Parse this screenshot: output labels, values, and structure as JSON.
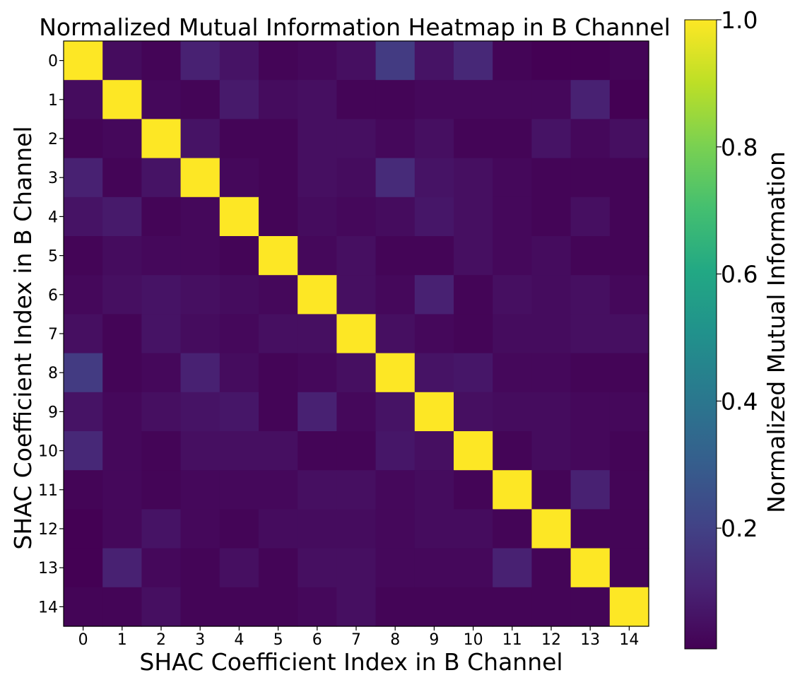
{
  "chart_data": {
    "type": "heatmap",
    "title": "Normalized Mutual Information Heatmap in B Channel",
    "xlabel": "SHAC Coefficient Index in B Channel",
    "ylabel": "SHAC Coefficient Index in B Channel",
    "x_categories": [
      "0",
      "1",
      "2",
      "3",
      "4",
      "5",
      "6",
      "7",
      "8",
      "9",
      "10",
      "11",
      "12",
      "13",
      "14"
    ],
    "y_categories": [
      "0",
      "1",
      "2",
      "3",
      "4",
      "5",
      "6",
      "7",
      "8",
      "9",
      "10",
      "11",
      "12",
      "13",
      "14"
    ],
    "values": [
      [
        1.0,
        0.04,
        0.02,
        0.1,
        0.06,
        0.02,
        0.03,
        0.05,
        0.18,
        0.06,
        0.12,
        0.02,
        0.01,
        0.01,
        0.02
      ],
      [
        0.04,
        1.0,
        0.03,
        0.02,
        0.08,
        0.04,
        0.05,
        0.02,
        0.02,
        0.03,
        0.03,
        0.03,
        0.03,
        0.1,
        0.01
      ],
      [
        0.02,
        0.03,
        1.0,
        0.06,
        0.02,
        0.02,
        0.05,
        0.05,
        0.03,
        0.05,
        0.02,
        0.02,
        0.06,
        0.03,
        0.05
      ],
      [
        0.1,
        0.02,
        0.06,
        1.0,
        0.03,
        0.02,
        0.05,
        0.04,
        0.13,
        0.06,
        0.05,
        0.03,
        0.02,
        0.02,
        0.02
      ],
      [
        0.06,
        0.08,
        0.02,
        0.03,
        1.0,
        0.02,
        0.04,
        0.03,
        0.04,
        0.07,
        0.05,
        0.03,
        0.02,
        0.05,
        0.02
      ],
      [
        0.02,
        0.04,
        0.03,
        0.03,
        0.02,
        1.0,
        0.03,
        0.05,
        0.02,
        0.02,
        0.05,
        0.03,
        0.04,
        0.02,
        0.02
      ],
      [
        0.03,
        0.05,
        0.06,
        0.05,
        0.04,
        0.03,
        1.0,
        0.05,
        0.03,
        0.1,
        0.02,
        0.05,
        0.04,
        0.05,
        0.03
      ],
      [
        0.05,
        0.02,
        0.06,
        0.04,
        0.03,
        0.05,
        0.05,
        1.0,
        0.05,
        0.03,
        0.02,
        0.04,
        0.04,
        0.05,
        0.05
      ],
      [
        0.18,
        0.02,
        0.03,
        0.1,
        0.04,
        0.02,
        0.03,
        0.05,
        1.0,
        0.06,
        0.07,
        0.03,
        0.03,
        0.02,
        0.02
      ],
      [
        0.06,
        0.03,
        0.05,
        0.06,
        0.07,
        0.02,
        0.1,
        0.03,
        0.06,
        1.0,
        0.05,
        0.04,
        0.04,
        0.03,
        0.03
      ],
      [
        0.12,
        0.03,
        0.02,
        0.05,
        0.05,
        0.05,
        0.02,
        0.02,
        0.07,
        0.05,
        1.0,
        0.02,
        0.04,
        0.03,
        0.02
      ],
      [
        0.02,
        0.03,
        0.02,
        0.03,
        0.03,
        0.03,
        0.05,
        0.05,
        0.03,
        0.04,
        0.02,
        1.0,
        0.02,
        0.1,
        0.02
      ],
      [
        0.01,
        0.03,
        0.06,
        0.03,
        0.02,
        0.04,
        0.04,
        0.04,
        0.03,
        0.04,
        0.04,
        0.02,
        1.0,
        0.02,
        0.02
      ],
      [
        0.01,
        0.1,
        0.03,
        0.02,
        0.05,
        0.02,
        0.05,
        0.05,
        0.03,
        0.03,
        0.03,
        0.1,
        0.02,
        1.0,
        0.02
      ],
      [
        0.02,
        0.02,
        0.05,
        0.02,
        0.02,
        0.02,
        0.03,
        0.05,
        0.02,
        0.02,
        0.02,
        0.02,
        0.02,
        0.02,
        1.0
      ]
    ],
    "colorbar": {
      "label": "Normalized Mutual Information",
      "colormap": "viridis",
      "range": [
        0.01,
        1.0
      ],
      "ticks": [
        0.2,
        0.4,
        0.6,
        0.8,
        1.0
      ],
      "tick_labels": [
        "0.2",
        "0.4",
        "0.6",
        "0.8",
        "1.0"
      ]
    },
    "grid": false
  }
}
